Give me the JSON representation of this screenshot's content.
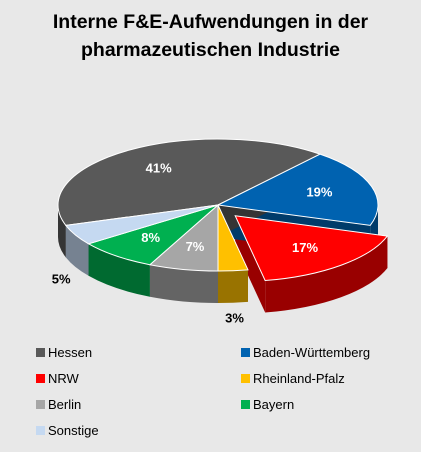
{
  "chart_data": {
    "type": "pie",
    "title": "Interne F&E-Aufwendungen in der pharmazeutischen Industrie",
    "categories": [
      "Hessen",
      "Baden-Württemberg",
      "NRW",
      "Rheinland-Pfalz",
      "Berlin",
      "Bayern",
      "Sonstige"
    ],
    "values": [
      41,
      19,
      17,
      3,
      7,
      8,
      5
    ],
    "value_labels": [
      "41%",
      "19%",
      "17%",
      "3%",
      "7%",
      "8%",
      "5%"
    ],
    "colors": [
      "#595959",
      "#0062b0",
      "#ff0000",
      "#ffc000",
      "#a6a6a6",
      "#00b050",
      "#c5d9f1"
    ],
    "exploded": [
      "NRW"
    ],
    "legend": "bottom"
  }
}
